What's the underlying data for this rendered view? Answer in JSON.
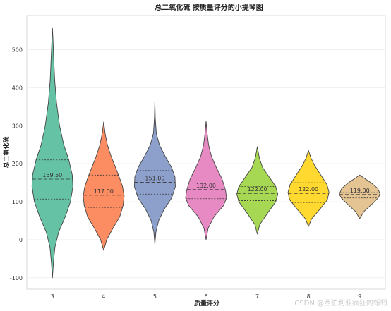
{
  "chart_data": {
    "type": "violin",
    "title": "总二氧化硫 按质量评分的小提琴图",
    "xlabel": "质量评分",
    "ylabel": "总二氧化硫",
    "categories": [
      "3",
      "4",
      "5",
      "6",
      "7",
      "8",
      "9"
    ],
    "ylim": [
      -130,
      590
    ],
    "yticks": [
      -100,
      0,
      100,
      200,
      300,
      400,
      500
    ],
    "grid": true,
    "violins": [
      {
        "category": "3",
        "color": "#66c2a5",
        "median": 159.5,
        "median_label": "159.50",
        "q1": 107,
        "q3": 210,
        "profile": [
          [
            -100,
            0
          ],
          [
            -60,
            0.05
          ],
          [
            -20,
            0.12
          ],
          [
            20,
            0.3
          ],
          [
            60,
            0.62
          ],
          [
            100,
            0.88
          ],
          [
            140,
            1.0
          ],
          [
            170,
            0.97
          ],
          [
            210,
            0.8
          ],
          [
            250,
            0.55
          ],
          [
            300,
            0.35
          ],
          [
            360,
            0.2
          ],
          [
            420,
            0.11
          ],
          [
            480,
            0.06
          ],
          [
            530,
            0.025
          ],
          [
            557,
            0
          ]
        ]
      },
      {
        "category": "4",
        "color": "#fc8d62",
        "median": 117.0,
        "median_label": "117.00",
        "q1": 85,
        "q3": 170,
        "profile": [
          [
            -28,
            0
          ],
          [
            0,
            0.15
          ],
          [
            30,
            0.45
          ],
          [
            60,
            0.78
          ],
          [
            90,
            0.95
          ],
          [
            115,
            1.0
          ],
          [
            140,
            0.92
          ],
          [
            165,
            0.76
          ],
          [
            190,
            0.58
          ],
          [
            220,
            0.36
          ],
          [
            250,
            0.18
          ],
          [
            280,
            0.07
          ],
          [
            310,
            0
          ]
        ]
      },
      {
        "category": "5",
        "color": "#8da0cb",
        "median": 151.0,
        "median_label": "151.00",
        "q1": 120,
        "q3": 182,
        "profile": [
          [
            -12,
            0
          ],
          [
            20,
            0.05
          ],
          [
            50,
            0.18
          ],
          [
            80,
            0.45
          ],
          [
            110,
            0.82
          ],
          [
            140,
            1.0
          ],
          [
            165,
            0.98
          ],
          [
            190,
            0.82
          ],
          [
            220,
            0.5
          ],
          [
            250,
            0.22
          ],
          [
            280,
            0.07
          ],
          [
            320,
            0.02
          ],
          [
            365,
            0
          ]
        ]
      },
      {
        "category": "6",
        "color": "#e78ac3",
        "median": 132.0,
        "median_label": "132.00",
        "q1": 108,
        "q3": 162,
        "profile": [
          [
            0,
            0
          ],
          [
            30,
            0.1
          ],
          [
            60,
            0.38
          ],
          [
            90,
            0.85
          ],
          [
            110,
            1.0
          ],
          [
            130,
            0.95
          ],
          [
            160,
            0.78
          ],
          [
            190,
            0.5
          ],
          [
            220,
            0.26
          ],
          [
            250,
            0.12
          ],
          [
            280,
            0.05
          ],
          [
            312,
            0
          ]
        ]
      },
      {
        "category": "7",
        "color": "#a6d854",
        "median": 122.0,
        "median_label": "122.00",
        "q1": 103,
        "q3": 140,
        "profile": [
          [
            15,
            0
          ],
          [
            40,
            0.12
          ],
          [
            70,
            0.5
          ],
          [
            100,
            0.9
          ],
          [
            120,
            1.0
          ],
          [
            140,
            0.9
          ],
          [
            165,
            0.58
          ],
          [
            190,
            0.26
          ],
          [
            215,
            0.1
          ],
          [
            245,
            0
          ]
        ]
      },
      {
        "category": "8",
        "color": "#ffd92f",
        "median": 122.0,
        "median_label": "122.00",
        "q1": 98,
        "q3": 150,
        "profile": [
          [
            35,
            0
          ],
          [
            55,
            0.15
          ],
          [
            80,
            0.55
          ],
          [
            105,
            0.92
          ],
          [
            125,
            1.0
          ],
          [
            145,
            0.9
          ],
          [
            170,
            0.6
          ],
          [
            195,
            0.3
          ],
          [
            215,
            0.12
          ],
          [
            235,
            0
          ]
        ]
      },
      {
        "category": "9",
        "color": "#e5c494",
        "median": 119.0,
        "median_label": "119.00",
        "q1": 110,
        "q3": 124,
        "profile": [
          [
            56,
            0
          ],
          [
            75,
            0.22
          ],
          [
            95,
            0.62
          ],
          [
            110,
            0.9
          ],
          [
            120,
            1.0
          ],
          [
            135,
            0.88
          ],
          [
            150,
            0.55
          ],
          [
            162,
            0.22
          ],
          [
            170,
            0
          ]
        ]
      }
    ]
  },
  "watermark": "CSDN @西伯利亚疯狂的蚯蚓"
}
